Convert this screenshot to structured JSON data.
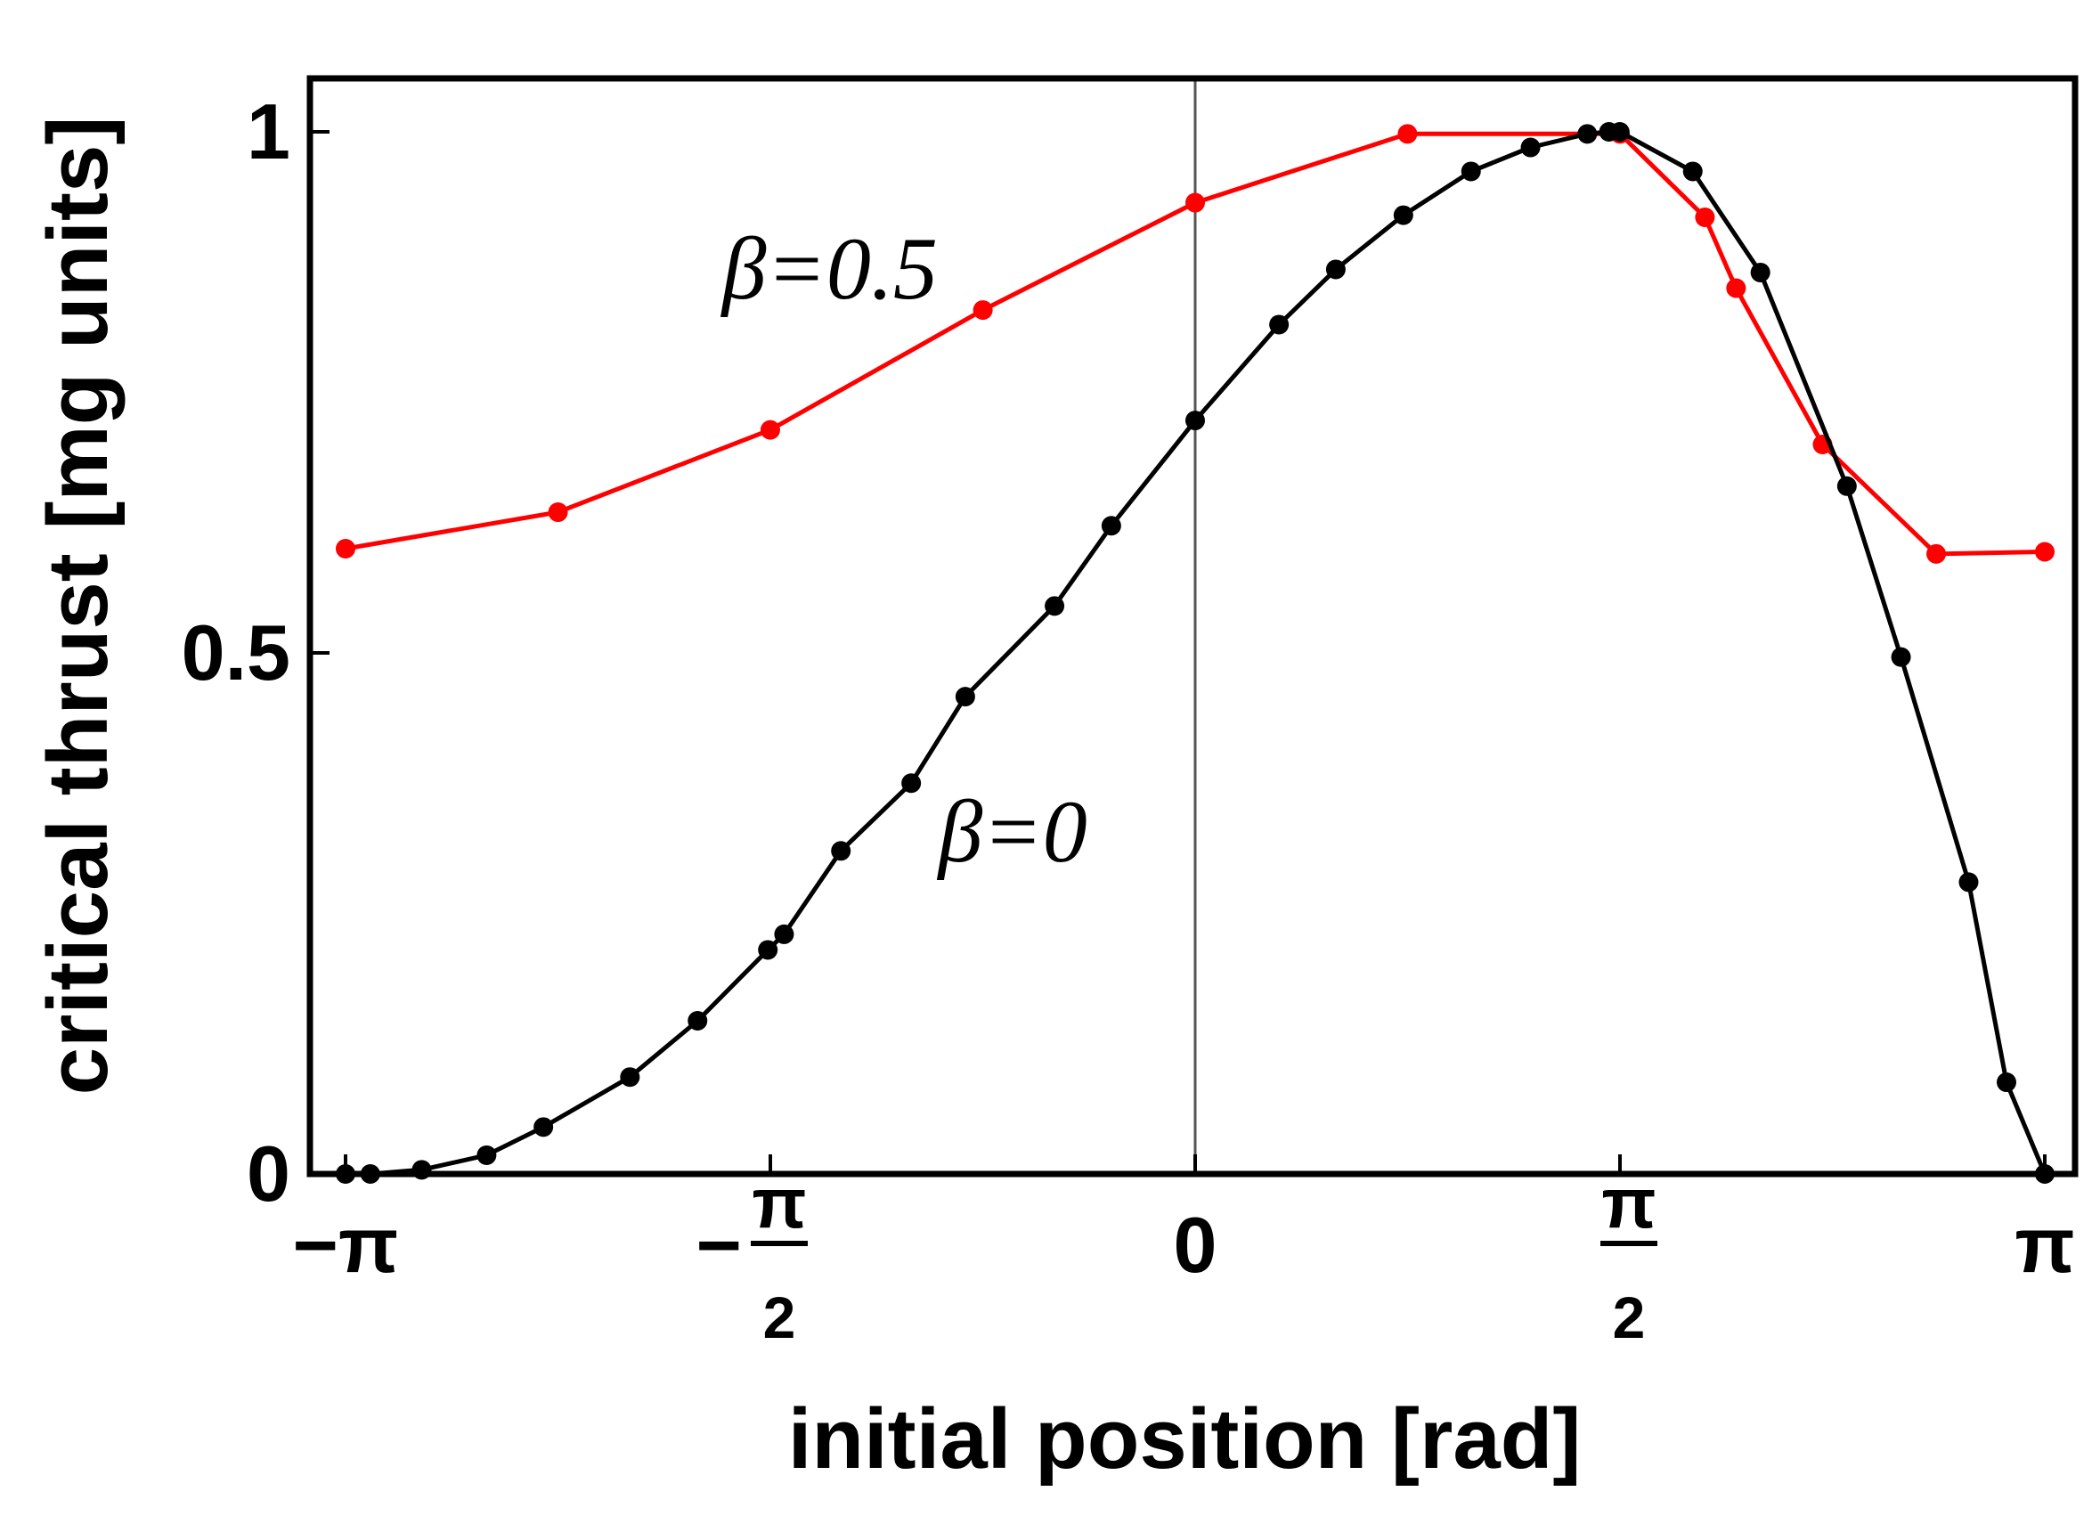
{
  "chart_data": {
    "type": "line",
    "title": "",
    "xlabel": "initial position [rad]",
    "ylabel": "critical thrust [mg units]",
    "xlim": [
      -3.14159,
      3.14159
    ],
    "ylim": [
      0,
      1
    ],
    "grid": false,
    "x_ticks": [
      {
        "value": -3.14159,
        "label": "−π"
      },
      {
        "value": -1.5708,
        "label": "−",
        "num": "π",
        "den": "2"
      },
      {
        "value": 0,
        "label": "0"
      },
      {
        "value": 1.5708,
        "label": "",
        "num": "π",
        "den": "2"
      },
      {
        "value": 3.14159,
        "label": "π"
      }
    ],
    "y_ticks": [
      {
        "value": 0,
        "label": "0"
      },
      {
        "value": 0.5,
        "label": "0.5"
      },
      {
        "value": 1,
        "label": "1"
      }
    ],
    "annotations": [
      {
        "text": "β=0.5",
        "x": -1.75,
        "y": 0.84
      },
      {
        "text": "β=0",
        "x": -0.95,
        "y": 0.3
      }
    ],
    "series": [
      {
        "name": "β=0.5",
        "color": "#ff0000",
        "x": [
          -3.1416,
          -2.356,
          -1.571,
          -0.785,
          0.0,
          0.785,
          1.571,
          1.885,
          2.0,
          2.32,
          2.74,
          3.1416
        ],
        "y": [
          0.6,
          0.635,
          0.714,
          0.829,
          0.932,
          0.998,
          0.998,
          0.918,
          0.85,
          0.7,
          0.595,
          0.597
        ]
      },
      {
        "name": "β=0",
        "color": "#000000",
        "x": [
          -3.1416,
          -3.05,
          -2.86,
          -2.62,
          -2.41,
          -2.09,
          -1.84,
          -1.58,
          -1.52,
          -1.31,
          -1.05,
          -0.85,
          -0.52,
          -0.31,
          0.0,
          0.31,
          0.52,
          0.77,
          1.02,
          1.24,
          1.45,
          1.53,
          1.57,
          1.84,
          2.09,
          2.41,
          2.61,
          2.86,
          3.0,
          3.1416
        ],
        "y": [
          0.0,
          0.0,
          0.004,
          0.018,
          0.045,
          0.093,
          0.147,
          0.215,
          0.23,
          0.31,
          0.375,
          0.458,
          0.545,
          0.622,
          0.723,
          0.815,
          0.868,
          0.92,
          0.962,
          0.985,
          0.998,
          1.0,
          1.0,
          0.962,
          0.865,
          0.66,
          0.496,
          0.28,
          0.088,
          0.0
        ]
      }
    ]
  }
}
